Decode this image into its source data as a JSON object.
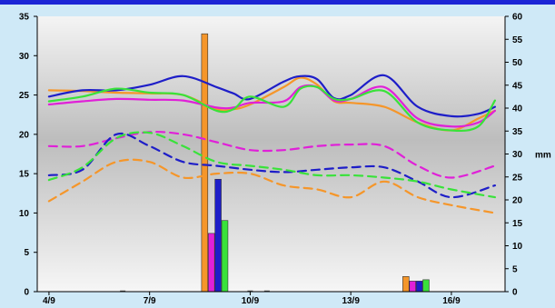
{
  "chart_data": {
    "type": "line",
    "x_ticks": [
      "4/9",
      "7/9",
      "10/9",
      "13/9",
      "16/9"
    ],
    "x_tick_positions": [
      0,
      3,
      6,
      9,
      12
    ],
    "xlim": [
      -0.35,
      13.6
    ],
    "ylim_left": [
      0,
      35
    ],
    "ylim_right": [
      0,
      60
    ],
    "yticks_left": [
      0,
      5,
      10,
      15,
      20,
      25,
      30,
      35
    ],
    "yticks_right": [
      0,
      5,
      10,
      15,
      20,
      25,
      30,
      35,
      40,
      45,
      50,
      55,
      60
    ],
    "right_unit": "mm",
    "grid": false,
    "series": [
      {
        "style": "solid",
        "color": "#f5962a",
        "x": [
          0,
          1,
          2,
          3,
          4,
          5,
          5.5,
          6,
          7,
          7.5,
          8,
          8.5,
          9,
          10,
          11,
          12,
          12.8,
          13.3
        ],
        "y": [
          25.6,
          25.5,
          25.3,
          25.2,
          25.0,
          23.2,
          23.2,
          23.8,
          26.0,
          27.2,
          26.3,
          24.2,
          24.0,
          23.5,
          21.5,
          20.5,
          22.0,
          23.0
        ]
      },
      {
        "style": "solid",
        "color": "#e020d8",
        "x": [
          0,
          1,
          2,
          3,
          4,
          5,
          5.5,
          6,
          7,
          7.5,
          8,
          8.5,
          9,
          10,
          11,
          12,
          12.8,
          13.3
        ],
        "y": [
          23.8,
          24.2,
          24.5,
          24.4,
          24.3,
          23.4,
          23.4,
          24.0,
          24.2,
          26.0,
          26.0,
          24.3,
          24.5,
          26.0,
          22.0,
          21.0,
          21.5,
          23.0
        ]
      },
      {
        "style": "solid",
        "color": "#1e1ec8",
        "x": [
          0,
          1,
          2,
          3,
          4,
          5,
          5.5,
          6,
          7,
          7.5,
          8,
          8.5,
          9,
          10,
          11,
          12,
          12.8,
          13.3
        ],
        "y": [
          24.8,
          25.6,
          25.6,
          26.3,
          27.4,
          26.0,
          25.2,
          24.5,
          26.7,
          27.4,
          27.0,
          24.6,
          25.0,
          27.5,
          23.5,
          22.3,
          22.6,
          23.5
        ]
      },
      {
        "style": "solid",
        "color": "#39e23a",
        "x": [
          0,
          1,
          2,
          3,
          4,
          5,
          5.5,
          6,
          7,
          7.5,
          8,
          8.5,
          9,
          10,
          11,
          12,
          12.8,
          13.3
        ],
        "y": [
          24.2,
          24.8,
          25.8,
          25.3,
          25.0,
          23.0,
          23.2,
          24.8,
          23.5,
          25.8,
          26.0,
          24.5,
          24.5,
          25.5,
          21.5,
          20.5,
          21.0,
          24.3
        ]
      },
      {
        "style": "dashed",
        "color": "#e020d8",
        "x": [
          0,
          1,
          2,
          3,
          4,
          5,
          6,
          7,
          8,
          9,
          10,
          11,
          12,
          13.3
        ],
        "y": [
          18.5,
          18.5,
          19.5,
          20.3,
          20.0,
          19.0,
          18.0,
          18.0,
          18.5,
          18.7,
          18.5,
          16.0,
          14.5,
          16.0
        ]
      },
      {
        "style": "dashed",
        "color": "#1e1ec8",
        "x": [
          0,
          1,
          2,
          3,
          4,
          5,
          6,
          7,
          8,
          9,
          10,
          11,
          12,
          13.3
        ],
        "y": [
          14.8,
          15.5,
          20.0,
          18.5,
          16.5,
          16.0,
          15.5,
          15.2,
          15.5,
          15.8,
          15.8,
          14.0,
          12.0,
          13.5
        ]
      },
      {
        "style": "dashed",
        "color": "#39e23a",
        "x": [
          0,
          1,
          2,
          3,
          4,
          5,
          6,
          7,
          8,
          9,
          10,
          11,
          12,
          13.3
        ],
        "y": [
          14.2,
          15.8,
          19.5,
          20.2,
          18.5,
          16.5,
          16.0,
          15.5,
          14.8,
          14.8,
          14.5,
          14.0,
          13.0,
          12.0
        ]
      },
      {
        "style": "dashed",
        "color": "#f5962a",
        "x": [
          0,
          1,
          2,
          3,
          4,
          5,
          6,
          7,
          8,
          9,
          10,
          11,
          12,
          13.3
        ],
        "y": [
          11.5,
          14.0,
          16.5,
          16.5,
          14.5,
          15.0,
          15.0,
          13.5,
          13.0,
          12.0,
          14.0,
          12.0,
          11.0,
          10.0
        ]
      }
    ],
    "bars": [
      {
        "x": 4.55,
        "width": 0.2,
        "value": 56.2,
        "color": "#f5962a"
      },
      {
        "x": 4.75,
        "width": 0.2,
        "value": 12.7,
        "color": "#e020d8"
      },
      {
        "x": 4.95,
        "width": 0.2,
        "value": 24.5,
        "color": "#1e1ec8"
      },
      {
        "x": 5.15,
        "width": 0.2,
        "value": 15.5,
        "color": "#39e23a"
      },
      {
        "x": 10.55,
        "width": 0.2,
        "value": 3.3,
        "color": "#f5962a"
      },
      {
        "x": 10.75,
        "width": 0.2,
        "value": 2.3,
        "color": "#e020d8"
      },
      {
        "x": 10.95,
        "width": 0.2,
        "value": 2.3,
        "color": "#1e1ec8"
      },
      {
        "x": 11.15,
        "width": 0.2,
        "value": 2.6,
        "color": "#39e23a"
      }
    ],
    "baseline_marks": [
      2.2,
      6.0,
      6.5
    ]
  }
}
